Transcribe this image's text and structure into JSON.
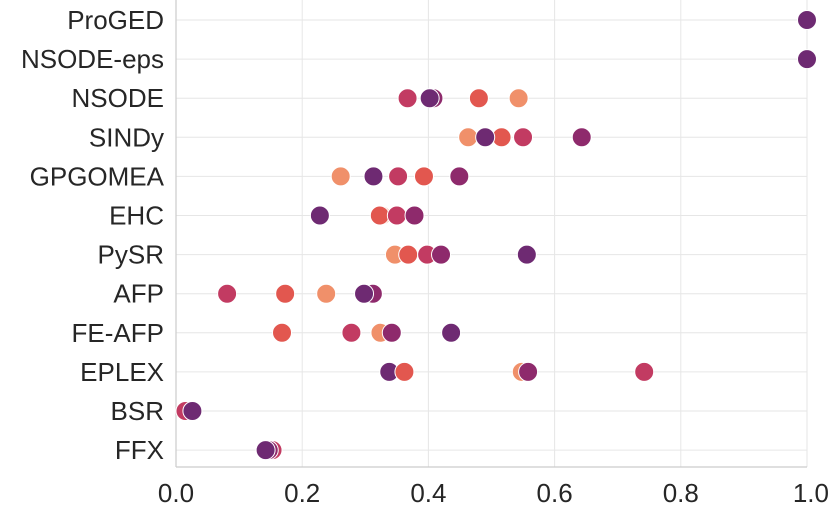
{
  "chart_data": {
    "type": "scatter",
    "orientation": "horizontal-strip",
    "title": "",
    "xlabel": "",
    "ylabel": "",
    "xlim": [
      0.0,
      1.0
    ],
    "x_ticks": [
      "0.0",
      "0.2",
      "0.4",
      "0.6",
      "0.8",
      "1.0"
    ],
    "x_tick_values": [
      0.0,
      0.2,
      0.4,
      0.6,
      0.8,
      1.0
    ],
    "grid": true,
    "legend": "none",
    "categories": [
      "ProGED",
      "NSODE-eps",
      "NSODE",
      "SINDy",
      "GPGOMEA",
      "EHC",
      "PySR",
      "AFP",
      "FE-AFP",
      "EPLEX",
      "BSR",
      "FFX"
    ],
    "palette": [
      "#f0906a",
      "#e2574f",
      "#c23b62",
      "#8e2a6c",
      "#6e2a72"
    ],
    "points": [
      {
        "category": "ProGED",
        "x": 1.0,
        "color": 4
      },
      {
        "category": "NSODE-eps",
        "x": 1.0,
        "color": 4
      },
      {
        "category": "NSODE",
        "x": 0.367,
        "color": 2
      },
      {
        "category": "NSODE",
        "x": 0.408,
        "color": 3
      },
      {
        "category": "NSODE",
        "x": 0.402,
        "color": 4
      },
      {
        "category": "NSODE",
        "x": 0.48,
        "color": 1
      },
      {
        "category": "NSODE",
        "x": 0.543,
        "color": 0
      },
      {
        "category": "SINDy",
        "x": 0.463,
        "color": 0
      },
      {
        "category": "SINDy",
        "x": 0.516,
        "color": 1
      },
      {
        "category": "SINDy",
        "x": 0.55,
        "color": 2
      },
      {
        "category": "SINDy",
        "x": 0.49,
        "color": 4
      },
      {
        "category": "SINDy",
        "x": 0.643,
        "color": 3
      },
      {
        "category": "GPGOMEA",
        "x": 0.261,
        "color": 0
      },
      {
        "category": "GPGOMEA",
        "x": 0.313,
        "color": 4
      },
      {
        "category": "GPGOMEA",
        "x": 0.352,
        "color": 2
      },
      {
        "category": "GPGOMEA",
        "x": 0.393,
        "color": 1
      },
      {
        "category": "GPGOMEA",
        "x": 0.449,
        "color": 3
      },
      {
        "category": "EHC",
        "x": 0.228,
        "color": 4
      },
      {
        "category": "EHC",
        "x": 0.326,
        "color": 0
      },
      {
        "category": "EHC",
        "x": 0.323,
        "color": 1
      },
      {
        "category": "EHC",
        "x": 0.35,
        "color": 2
      },
      {
        "category": "EHC",
        "x": 0.378,
        "color": 3
      },
      {
        "category": "PySR",
        "x": 0.347,
        "color": 0
      },
      {
        "category": "PySR",
        "x": 0.368,
        "color": 1
      },
      {
        "category": "PySR",
        "x": 0.398,
        "color": 2
      },
      {
        "category": "PySR",
        "x": 0.42,
        "color": 3
      },
      {
        "category": "PySR",
        "x": 0.556,
        "color": 4
      },
      {
        "category": "AFP",
        "x": 0.081,
        "color": 2
      },
      {
        "category": "AFP",
        "x": 0.173,
        "color": 1
      },
      {
        "category": "AFP",
        "x": 0.238,
        "color": 0
      },
      {
        "category": "AFP",
        "x": 0.312,
        "color": 3
      },
      {
        "category": "AFP",
        "x": 0.298,
        "color": 4
      },
      {
        "category": "FE-AFP",
        "x": 0.168,
        "color": 1
      },
      {
        "category": "FE-AFP",
        "x": 0.278,
        "color": 2
      },
      {
        "category": "FE-AFP",
        "x": 0.324,
        "color": 0
      },
      {
        "category": "FE-AFP",
        "x": 0.342,
        "color": 3
      },
      {
        "category": "FE-AFP",
        "x": 0.436,
        "color": 4
      },
      {
        "category": "EPLEX",
        "x": 0.338,
        "color": 4
      },
      {
        "category": "EPLEX",
        "x": 0.362,
        "color": 1
      },
      {
        "category": "EPLEX",
        "x": 0.548,
        "color": 0
      },
      {
        "category": "EPLEX",
        "x": 0.558,
        "color": 3
      },
      {
        "category": "EPLEX",
        "x": 0.742,
        "color": 2
      },
      {
        "category": "BSR",
        "x": 0.015,
        "color": 2
      },
      {
        "category": "BSR",
        "x": 0.026,
        "color": 4
      },
      {
        "category": "FFX",
        "x": 0.142,
        "color": 0
      },
      {
        "category": "FFX",
        "x": 0.153,
        "color": 2
      },
      {
        "category": "FFX",
        "x": 0.147,
        "color": 3
      },
      {
        "category": "FFX",
        "x": 0.142,
        "color": 4
      }
    ]
  }
}
